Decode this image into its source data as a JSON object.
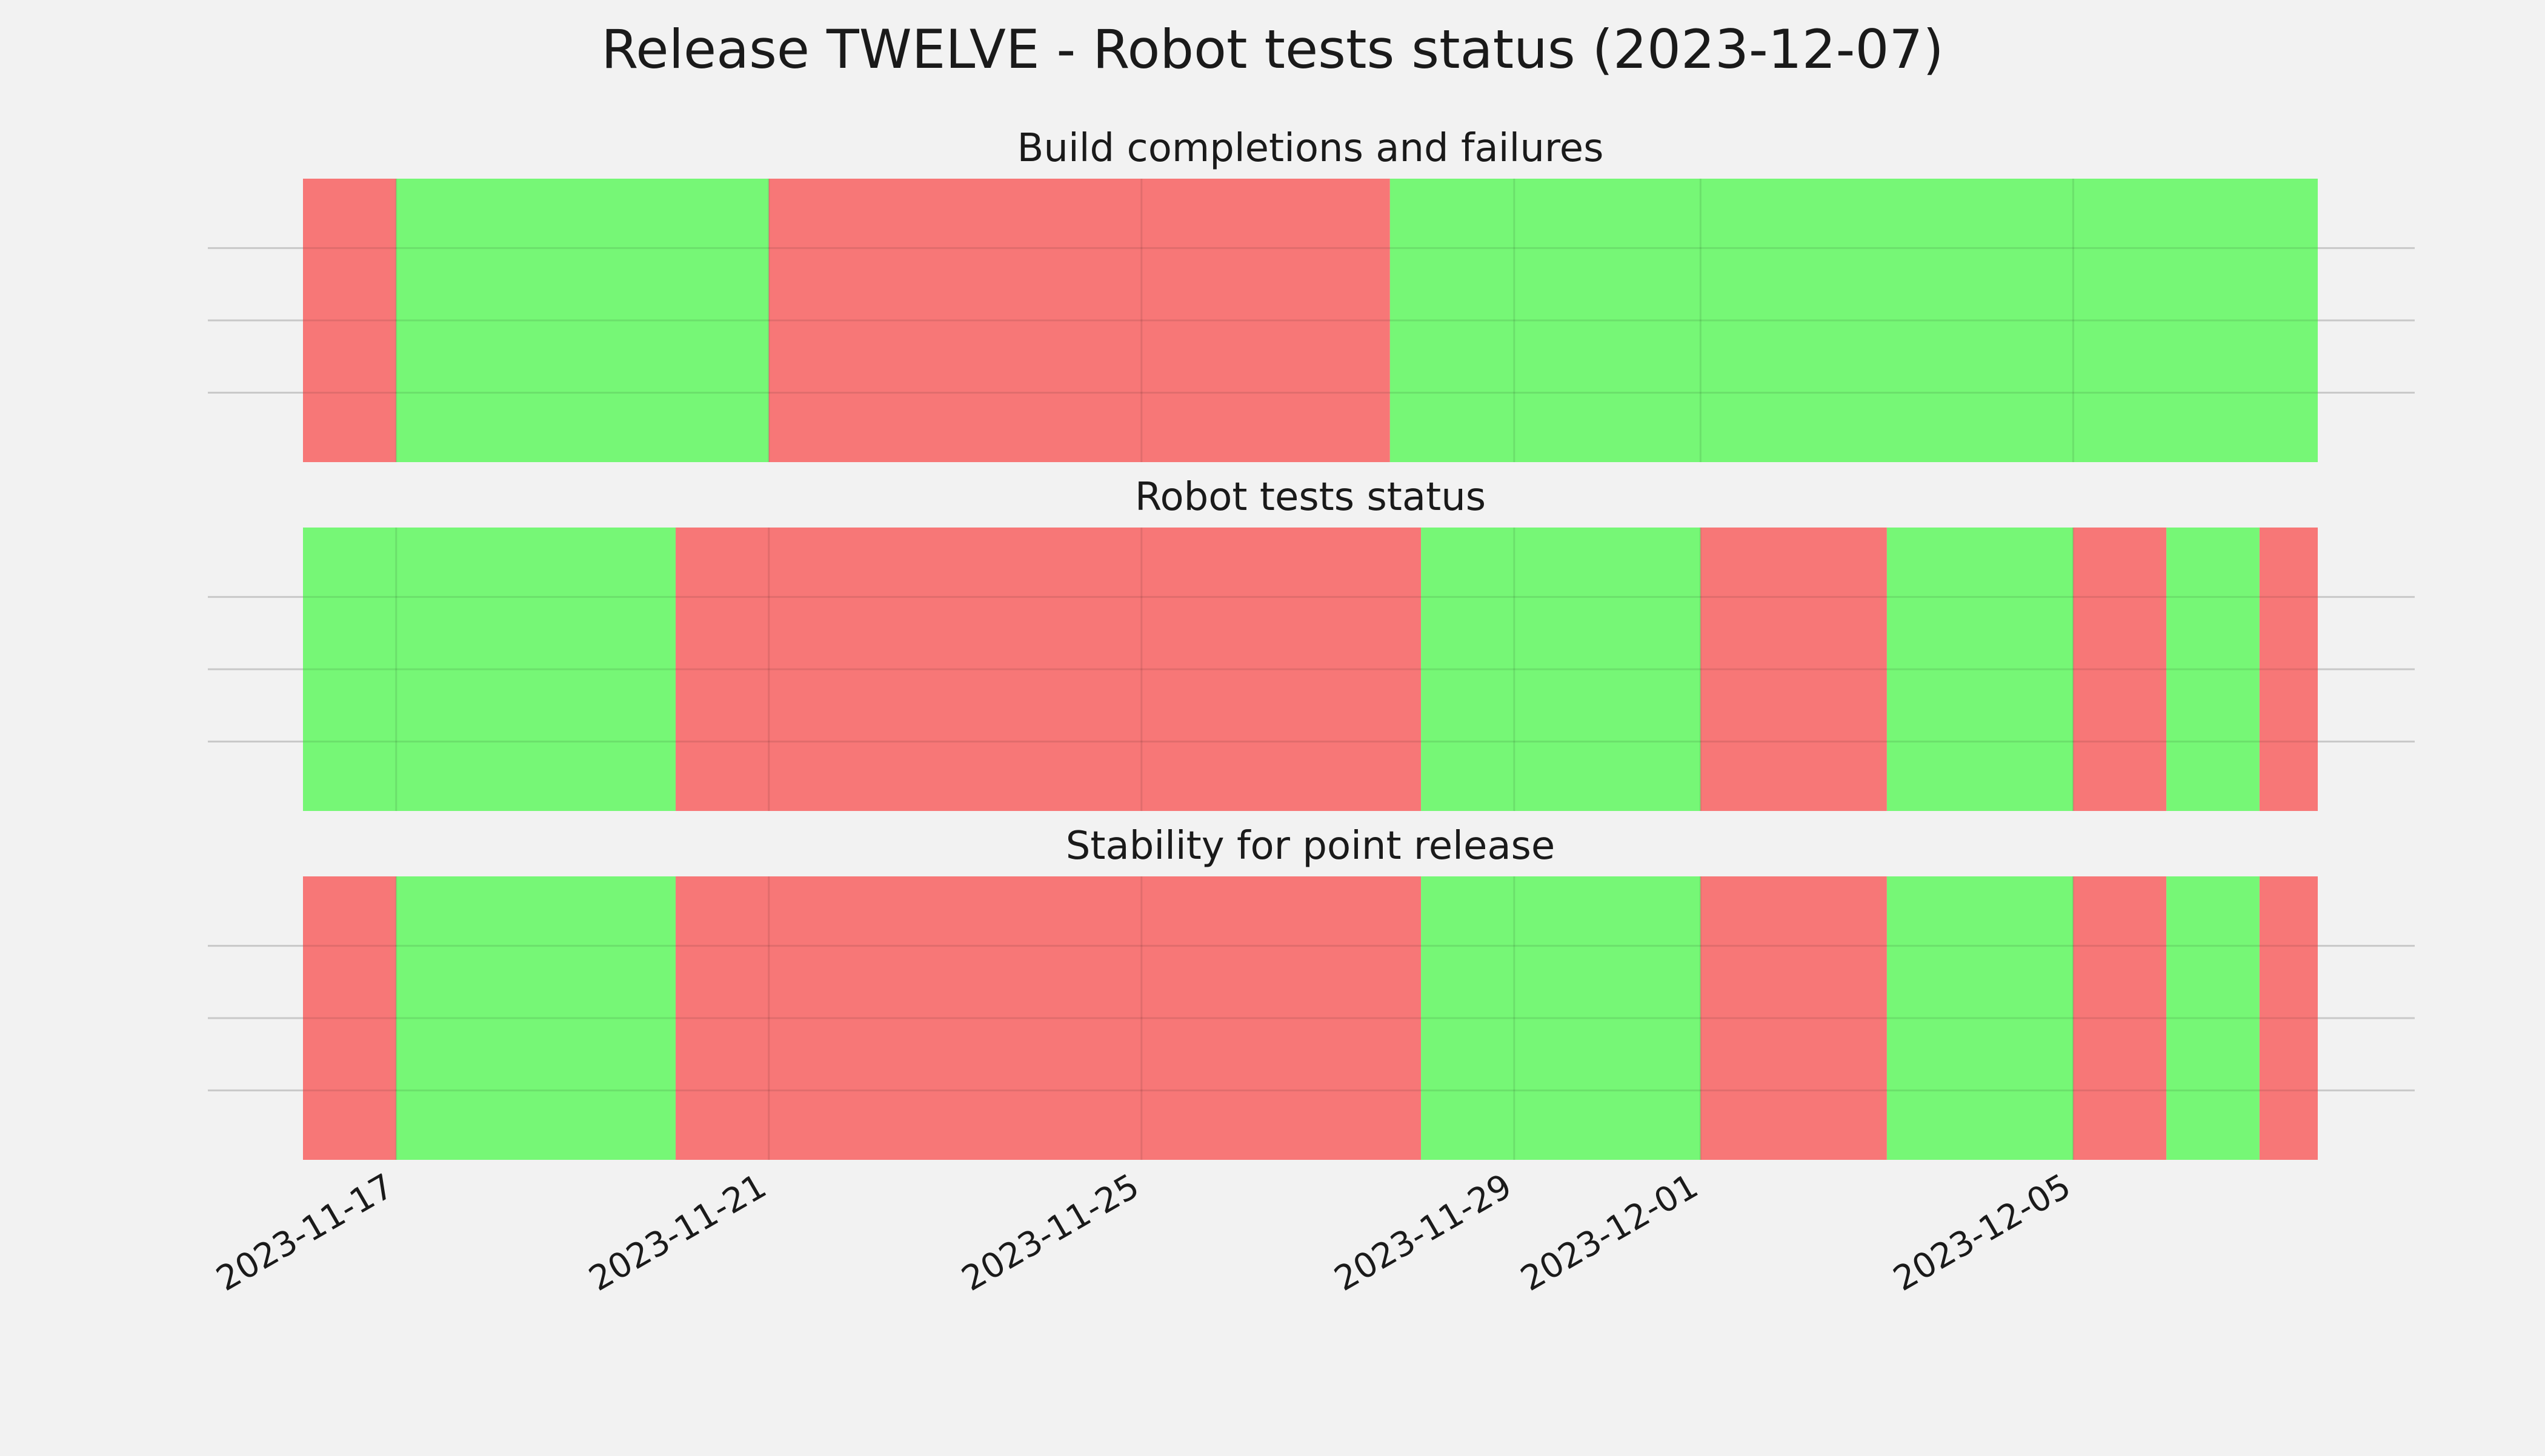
{
  "figure": {
    "title": "Release TWELVE - Robot tests status (2023-12-07)",
    "background": "#f2f2f2"
  },
  "colors": {
    "pass": "#76f776",
    "fail": "#f77777",
    "grid": "#c8c8c8"
  },
  "chart_data": {
    "type": "timeline",
    "x_axis": {
      "type": "date",
      "range": [
        "2023-11-16T00:00",
        "2023-12-07T15:00"
      ],
      "ticks": [
        "2023-11-17",
        "2023-11-21",
        "2023-11-25",
        "2023-11-29",
        "2023-12-01",
        "2023-12-05"
      ],
      "tick_rotation_deg": 30
    },
    "grid": true,
    "panels": [
      {
        "title": "Build completions and failures",
        "segments": [
          {
            "start": "2023-11-16T00:00",
            "end": "2023-11-17T00:00",
            "status": "fail"
          },
          {
            "start": "2023-11-17T00:00",
            "end": "2023-11-21T00:00",
            "status": "pass"
          },
          {
            "start": "2023-11-21T00:00",
            "end": "2023-11-27T16:00",
            "status": "fail"
          },
          {
            "start": "2023-11-27T16:00",
            "end": "2023-12-07T15:00",
            "status": "pass"
          }
        ]
      },
      {
        "title": "Robot tests status",
        "segments": [
          {
            "start": "2023-11-16T00:00",
            "end": "2023-11-20T00:00",
            "status": "pass"
          },
          {
            "start": "2023-11-20T00:00",
            "end": "2023-11-28T00:00",
            "status": "fail"
          },
          {
            "start": "2023-11-28T00:00",
            "end": "2023-12-01T00:00",
            "status": "pass"
          },
          {
            "start": "2023-12-01T00:00",
            "end": "2023-12-03T00:00",
            "status": "fail"
          },
          {
            "start": "2023-12-03T00:00",
            "end": "2023-12-05T00:00",
            "status": "pass"
          },
          {
            "start": "2023-12-05T00:00",
            "end": "2023-12-06T00:00",
            "status": "fail"
          },
          {
            "start": "2023-12-06T00:00",
            "end": "2023-12-07T00:00",
            "status": "pass"
          },
          {
            "start": "2023-12-07T00:00",
            "end": "2023-12-07T15:00",
            "status": "fail"
          }
        ]
      },
      {
        "title": "Stability for point release",
        "segments": [
          {
            "start": "2023-11-16T00:00",
            "end": "2023-11-17T00:00",
            "status": "fail"
          },
          {
            "start": "2023-11-17T00:00",
            "end": "2023-11-20T00:00",
            "status": "pass"
          },
          {
            "start": "2023-11-20T00:00",
            "end": "2023-11-28T00:00",
            "status": "fail"
          },
          {
            "start": "2023-11-28T00:00",
            "end": "2023-12-01T00:00",
            "status": "pass"
          },
          {
            "start": "2023-12-01T00:00",
            "end": "2023-12-03T00:00",
            "status": "fail"
          },
          {
            "start": "2023-12-03T00:00",
            "end": "2023-12-05T00:00",
            "status": "pass"
          },
          {
            "start": "2023-12-05T00:00",
            "end": "2023-12-06T00:00",
            "status": "fail"
          },
          {
            "start": "2023-12-06T00:00",
            "end": "2023-12-07T00:00",
            "status": "pass"
          },
          {
            "start": "2023-12-07T00:00",
            "end": "2023-12-07T15:00",
            "status": "fail"
          }
        ]
      }
    ]
  }
}
